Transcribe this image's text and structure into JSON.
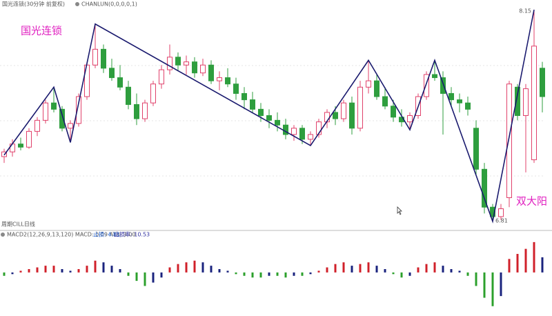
{
  "header": {
    "symbol": "国光连锁(30分钟 前复权)",
    "indicator": "CHANLUN(0,0,0,0,1)",
    "footnote": "周期CILL日线"
  },
  "chart_data": [
    {
      "type": "candlestick",
      "title": "国光连锁",
      "annotation": "双大阳",
      "ylim": [
        6.77,
        8.19
      ],
      "grid": true,
      "colors": {
        "up": "#e0406a",
        "down": "#2e9e3e",
        "pen": "#1a1a6e"
      },
      "candles": [
        {
          "open": 7.22,
          "high": 7.27,
          "low": 7.18,
          "close": 7.25
        },
        {
          "open": 7.25,
          "high": 7.33,
          "low": 7.22,
          "close": 7.3
        },
        {
          "open": 7.3,
          "high": 7.34,
          "low": 7.26,
          "close": 7.28
        },
        {
          "open": 7.28,
          "high": 7.4,
          "low": 7.27,
          "close": 7.38
        },
        {
          "open": 7.38,
          "high": 7.47,
          "low": 7.35,
          "close": 7.45
        },
        {
          "open": 7.45,
          "high": 7.58,
          "low": 7.43,
          "close": 7.56
        },
        {
          "open": 7.56,
          "high": 7.66,
          "low": 7.5,
          "close": 7.52
        },
        {
          "open": 7.52,
          "high": 7.54,
          "low": 7.38,
          "close": 7.4
        },
        {
          "open": 7.4,
          "high": 7.45,
          "low": 7.31,
          "close": 7.43
        },
        {
          "open": 7.43,
          "high": 7.62,
          "low": 7.41,
          "close": 7.6
        },
        {
          "open": 7.6,
          "high": 7.82,
          "low": 7.58,
          "close": 7.8
        },
        {
          "open": 7.8,
          "high": 8.06,
          "low": 7.78,
          "close": 7.9
        },
        {
          "open": 7.9,
          "high": 7.93,
          "low": 7.75,
          "close": 7.78
        },
        {
          "open": 7.78,
          "high": 7.84,
          "low": 7.7,
          "close": 7.72
        },
        {
          "open": 7.72,
          "high": 7.8,
          "low": 7.64,
          "close": 7.66
        },
        {
          "open": 7.66,
          "high": 7.7,
          "low": 7.52,
          "close": 7.55
        },
        {
          "open": 7.55,
          "high": 7.62,
          "low": 7.42,
          "close": 7.46
        },
        {
          "open": 7.46,
          "high": 7.58,
          "low": 7.44,
          "close": 7.56
        },
        {
          "open": 7.56,
          "high": 7.7,
          "low": 7.54,
          "close": 7.68
        },
        {
          "open": 7.68,
          "high": 7.8,
          "low": 7.65,
          "close": 7.77
        },
        {
          "open": 7.77,
          "high": 7.93,
          "low": 7.74,
          "close": 7.85
        },
        {
          "open": 7.85,
          "high": 7.88,
          "low": 7.76,
          "close": 7.8
        },
        {
          "open": 7.8,
          "high": 7.86,
          "low": 7.74,
          "close": 7.82
        },
        {
          "open": 7.82,
          "high": 7.85,
          "low": 7.72,
          "close": 7.75
        },
        {
          "open": 7.75,
          "high": 7.84,
          "low": 7.73,
          "close": 7.8
        },
        {
          "open": 7.8,
          "high": 7.83,
          "low": 7.68,
          "close": 7.7
        },
        {
          "open": 7.7,
          "high": 7.76,
          "low": 7.64,
          "close": 7.72
        },
        {
          "open": 7.72,
          "high": 7.78,
          "low": 7.66,
          "close": 7.68
        },
        {
          "open": 7.68,
          "high": 7.72,
          "low": 7.58,
          "close": 7.62
        },
        {
          "open": 7.62,
          "high": 7.66,
          "low": 7.52,
          "close": 7.58
        },
        {
          "open": 7.58,
          "high": 7.63,
          "low": 7.5,
          "close": 7.52
        },
        {
          "open": 7.52,
          "high": 7.56,
          "low": 7.44,
          "close": 7.48
        },
        {
          "open": 7.48,
          "high": 7.52,
          "low": 7.4,
          "close": 7.45
        },
        {
          "open": 7.45,
          "high": 7.5,
          "low": 7.38,
          "close": 7.42
        },
        {
          "open": 7.42,
          "high": 7.46,
          "low": 7.33,
          "close": 7.36
        },
        {
          "open": 7.36,
          "high": 7.42,
          "low": 7.32,
          "close": 7.4
        },
        {
          "open": 7.4,
          "high": 7.42,
          "low": 7.3,
          "close": 7.33
        },
        {
          "open": 7.33,
          "high": 7.38,
          "low": 7.29,
          "close": 7.36
        },
        {
          "open": 7.36,
          "high": 7.46,
          "low": 7.34,
          "close": 7.44
        },
        {
          "open": 7.44,
          "high": 7.52,
          "low": 7.4,
          "close": 7.5
        },
        {
          "open": 7.5,
          "high": 7.54,
          "low": 7.42,
          "close": 7.46
        },
        {
          "open": 7.46,
          "high": 7.58,
          "low": 7.44,
          "close": 7.56
        },
        {
          "open": 7.56,
          "high": 7.6,
          "low": 7.36,
          "close": 7.4
        },
        {
          "open": 7.4,
          "high": 7.7,
          "low": 7.38,
          "close": 7.66
        },
        {
          "open": 7.66,
          "high": 7.83,
          "low": 7.62,
          "close": 7.7
        },
        {
          "open": 7.7,
          "high": 7.74,
          "low": 7.58,
          "close": 7.6
        },
        {
          "open": 7.6,
          "high": 7.66,
          "low": 7.52,
          "close": 7.54
        },
        {
          "open": 7.54,
          "high": 7.58,
          "low": 7.44,
          "close": 7.47
        },
        {
          "open": 7.47,
          "high": 7.52,
          "low": 7.41,
          "close": 7.44
        },
        {
          "open": 7.44,
          "high": 7.5,
          "low": 7.39,
          "close": 7.48
        },
        {
          "open": 7.48,
          "high": 7.62,
          "low": 7.46,
          "close": 7.6
        },
        {
          "open": 7.6,
          "high": 7.76,
          "low": 7.58,
          "close": 7.74
        },
        {
          "open": 7.74,
          "high": 7.83,
          "low": 7.7,
          "close": 7.72
        },
        {
          "open": 7.72,
          "high": 7.76,
          "low": 7.36,
          "close": 7.62
        },
        {
          "open": 7.62,
          "high": 7.66,
          "low": 7.54,
          "close": 7.58
        },
        {
          "open": 7.58,
          "high": 7.62,
          "low": 7.5,
          "close": 7.56
        },
        {
          "open": 7.56,
          "high": 7.6,
          "low": 7.48,
          "close": 7.52
        },
        {
          "open": 7.4,
          "high": 7.45,
          "low": 7.1,
          "close": 7.14
        },
        {
          "open": 7.14,
          "high": 7.18,
          "low": 6.86,
          "close": 6.9
        },
        {
          "open": 6.9,
          "high": 6.92,
          "low": 6.81,
          "close": 6.84
        },
        {
          "open": 6.84,
          "high": 6.92,
          "low": 6.82,
          "close": 6.89
        },
        {
          "open": 6.96,
          "high": 7.7,
          "low": 6.9,
          "close": 7.68
        },
        {
          "open": 7.66,
          "high": 7.68,
          "low": 7.45,
          "close": 7.48
        },
        {
          "open": 7.48,
          "high": 7.68,
          "low": 7.12,
          "close": 7.65
        },
        {
          "open": 7.2,
          "high": 8.15,
          "low": 7.18,
          "close": 7.92
        },
        {
          "open": 7.78,
          "high": 7.82,
          "low": 7.5,
          "close": 7.6
        }
      ],
      "pen": {
        "x": [
          0,
          6,
          8,
          11,
          37,
          44,
          49,
          52,
          59,
          64
        ],
        "values": [
          7.23,
          7.66,
          7.31,
          8.06,
          7.29,
          7.83,
          7.39,
          7.83,
          6.81,
          8.15
        ]
      },
      "high_label_index": 64,
      "low_label_index": 59
    },
    {
      "type": "macd",
      "title": "MACD2(12,26,9,13,120)  MACD: 0.09  ATR: 3.00",
      "stop": "止损: 4.81",
      "stop_rate": "止损率: 10.53",
      "ylim": [
        -0.25,
        0.2
      ],
      "colors": {
        "up": "#d0202a",
        "down": "#1a237e",
        "neg": "#2ca02c"
      },
      "values": [
        -0.02,
        -0.01,
        0.01,
        0.02,
        0.03,
        0.04,
        0.04,
        0.02,
        0.01,
        0.02,
        0.04,
        0.07,
        0.06,
        0.04,
        0.02,
        -0.02,
        -0.05,
        -0.08,
        -0.06,
        -0.03,
        0.03,
        0.05,
        0.06,
        0.07,
        0.06,
        0.04,
        0.02,
        0.01,
        -0.01,
        -0.02,
        -0.03,
        -0.03,
        -0.02,
        -0.02,
        -0.03,
        -0.02,
        -0.02,
        -0.01,
        0.01,
        0.03,
        0.05,
        0.06,
        0.04,
        0.05,
        0.06,
        0.04,
        0.02,
        -0.01,
        -0.03,
        -0.02,
        0.03,
        0.05,
        0.06,
        0.04,
        0.02,
        0.01,
        -0.02,
        -0.08,
        -0.15,
        -0.2,
        -0.14,
        0.08,
        0.11,
        0.14,
        0.18,
        0.09
      ]
    }
  ]
}
